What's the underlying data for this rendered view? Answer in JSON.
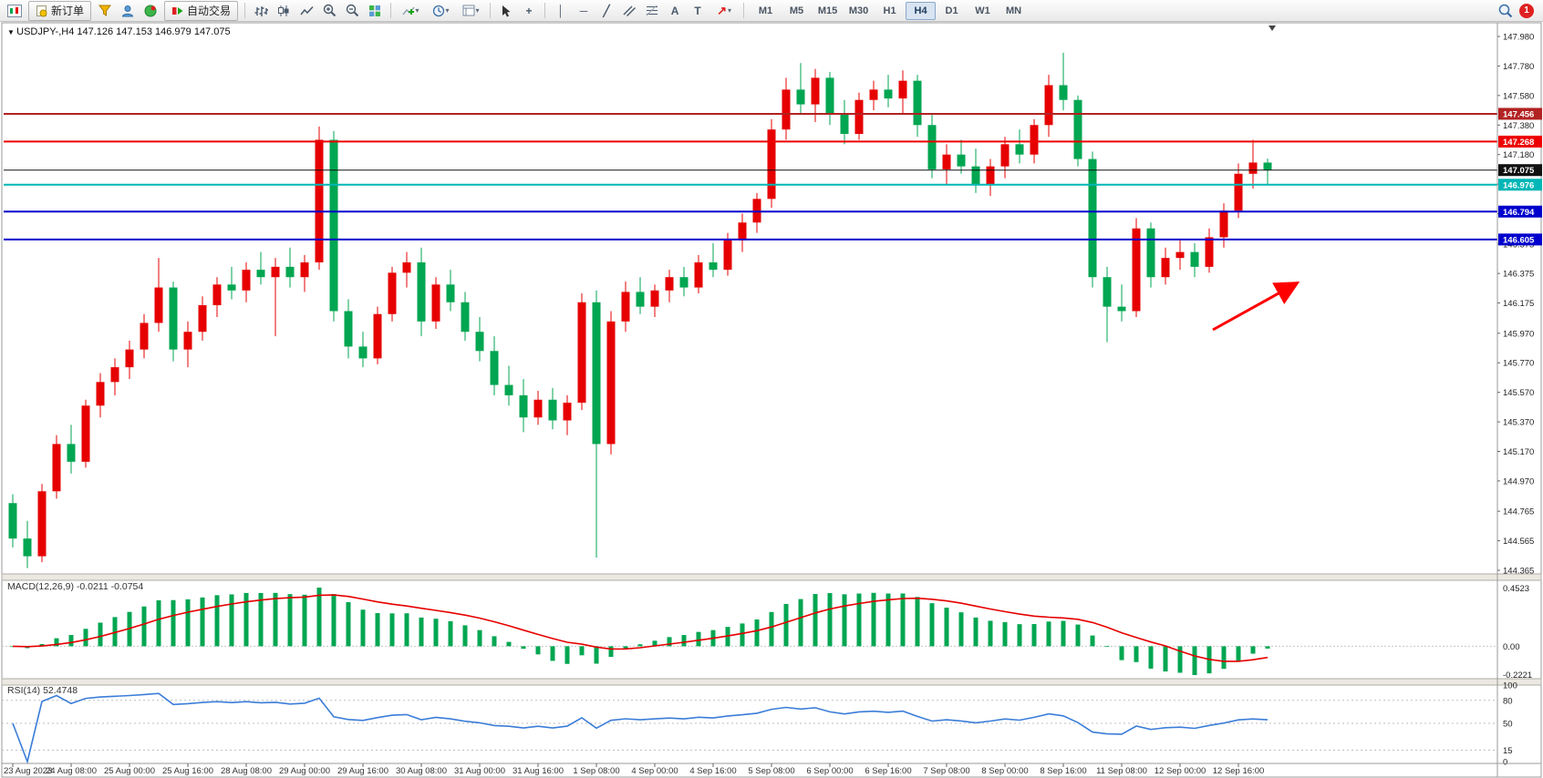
{
  "toolbar": {
    "new_order_label": "新订单",
    "autotrading_label": "自动交易",
    "timeframes": [
      "M1",
      "M5",
      "M15",
      "M30",
      "H1",
      "H4",
      "D1",
      "W1",
      "MN"
    ],
    "active_timeframe": "H4",
    "notification_count": "1"
  },
  "icons": {
    "one_click_toggle": "▼",
    "chart_shift_marker": "▼",
    "crosshair": "+",
    "vertical_line": "│",
    "horizontal_line": "─",
    "trendline": "╱",
    "text_tool": "A",
    "text_label_tool": "T",
    "arrows_tool": "↗",
    "dropdown_caret": "▾"
  },
  "chart": {
    "title": "USDJPY-,H4",
    "ohlc": {
      "open": "147.126",
      "high": "147.153",
      "low": "146.979",
      "close": "147.075"
    },
    "price_axis_ticks": [
      "147.980",
      "147.780",
      "147.580",
      "147.380",
      "147.180",
      "146.980",
      "146.780",
      "146.575",
      "146.375",
      "146.175",
      "145.970",
      "145.770",
      "145.570",
      "145.370",
      "145.170",
      "144.970",
      "144.765",
      "144.565",
      "144.365"
    ],
    "time_labels": [
      "23 Aug 2023",
      "24 Aug 08:00",
      "25 Aug 00:00",
      "25 Aug 16:00",
      "28 Aug 08:00",
      "29 Aug 00:00",
      "29 Aug 16:00",
      "30 Aug 08:00",
      "31 Aug 00:00",
      "31 Aug 16:00",
      "1 Sep 08:00",
      "4 Sep 00:00",
      "4 Sep 16:00",
      "5 Sep 08:00",
      "6 Sep 00:00",
      "6 Sep 16:00",
      "7 Sep 08:00",
      "8 Sep 00:00",
      "8 Sep 16:00",
      "11 Sep 08:00",
      "12 Sep 00:00",
      "12 Sep 16:00"
    ],
    "label_every_n_candles": 4,
    "levels": [
      {
        "price": "147.456",
        "value": 147.456,
        "color": "#b22222",
        "width": 2
      },
      {
        "price": "147.268",
        "value": 147.268,
        "color": "#ee0000",
        "width": 2
      },
      {
        "price": "147.075",
        "value": 147.075,
        "color": "#111111",
        "width": 1
      },
      {
        "price": "146.976",
        "value": 146.976,
        "color": "#00b6b6",
        "width": 2
      },
      {
        "price": "146.794",
        "value": 146.794,
        "color": "#0000cc",
        "width": 2
      },
      {
        "price": "146.605",
        "value": 146.605,
        "color": "#0000cc",
        "width": 2
      }
    ],
    "arrow_annotation": {
      "color": "#ff0000"
    }
  },
  "chart_data": {
    "type": "candlestick",
    "symbol": "USDJPY-",
    "timeframe": "H4",
    "up_color": "#e60000",
    "down_color": "#00a651",
    "ylim": [
      144.365,
      147.98
    ],
    "candles": [
      [
        144.82,
        144.88,
        144.52,
        144.58
      ],
      [
        144.58,
        144.7,
        144.38,
        144.46
      ],
      [
        144.46,
        144.95,
        144.42,
        144.9
      ],
      [
        144.9,
        145.28,
        144.85,
        145.22
      ],
      [
        145.22,
        145.35,
        145.02,
        145.1
      ],
      [
        145.1,
        145.52,
        145.06,
        145.48
      ],
      [
        145.48,
        145.7,
        145.4,
        145.64
      ],
      [
        145.64,
        145.8,
        145.55,
        145.74
      ],
      [
        145.74,
        145.92,
        145.66,
        145.86
      ],
      [
        145.86,
        146.1,
        145.8,
        146.04
      ],
      [
        146.04,
        146.48,
        145.98,
        146.28
      ],
      [
        146.28,
        146.32,
        145.78,
        145.86
      ],
      [
        145.86,
        146.05,
        145.74,
        145.98
      ],
      [
        145.98,
        146.22,
        145.92,
        146.16
      ],
      [
        146.16,
        146.35,
        146.08,
        146.3
      ],
      [
        146.3,
        146.42,
        146.2,
        146.26
      ],
      [
        146.26,
        146.45,
        146.18,
        146.4
      ],
      [
        146.4,
        146.52,
        146.3,
        146.35
      ],
      [
        146.35,
        146.48,
        145.95,
        146.42
      ],
      [
        146.42,
        146.55,
        146.28,
        146.35
      ],
      [
        146.35,
        146.5,
        146.25,
        146.45
      ],
      [
        146.45,
        147.37,
        146.4,
        147.28
      ],
      [
        147.28,
        147.34,
        146.05,
        146.12
      ],
      [
        146.12,
        146.2,
        145.8,
        145.88
      ],
      [
        145.88,
        145.98,
        145.74,
        145.8
      ],
      [
        145.8,
        146.15,
        145.76,
        146.1
      ],
      [
        146.1,
        146.42,
        146.05,
        146.38
      ],
      [
        146.38,
        146.52,
        146.28,
        146.45
      ],
      [
        146.45,
        146.55,
        145.95,
        146.05
      ],
      [
        146.05,
        146.35,
        146.0,
        146.3
      ],
      [
        146.3,
        146.4,
        146.12,
        146.18
      ],
      [
        146.18,
        146.25,
        145.92,
        145.98
      ],
      [
        145.98,
        146.08,
        145.78,
        145.85
      ],
      [
        145.85,
        145.95,
        145.55,
        145.62
      ],
      [
        145.62,
        145.75,
        145.48,
        145.55
      ],
      [
        145.55,
        145.66,
        145.3,
        145.4
      ],
      [
        145.4,
        145.58,
        145.35,
        145.52
      ],
      [
        145.52,
        145.6,
        145.32,
        145.38
      ],
      [
        145.38,
        145.55,
        145.28,
        145.5
      ],
      [
        145.5,
        146.24,
        145.45,
        146.18
      ],
      [
        146.18,
        146.26,
        144.45,
        145.22
      ],
      [
        145.22,
        146.12,
        145.15,
        146.05
      ],
      [
        146.05,
        146.32,
        145.98,
        146.25
      ],
      [
        146.25,
        146.35,
        146.1,
        146.15
      ],
      [
        146.15,
        146.3,
        146.08,
        146.26
      ],
      [
        146.26,
        146.4,
        146.18,
        146.35
      ],
      [
        146.35,
        146.42,
        146.22,
        146.28
      ],
      [
        146.28,
        146.5,
        146.24,
        146.45
      ],
      [
        146.45,
        146.58,
        146.35,
        146.4
      ],
      [
        146.4,
        146.65,
        146.36,
        146.6
      ],
      [
        146.6,
        146.78,
        146.52,
        146.72
      ],
      [
        146.72,
        146.92,
        146.65,
        146.88
      ],
      [
        146.88,
        147.42,
        146.82,
        147.35
      ],
      [
        147.35,
        147.7,
        147.28,
        147.62
      ],
      [
        147.62,
        147.8,
        147.45,
        147.52
      ],
      [
        147.52,
        147.76,
        147.4,
        147.7
      ],
      [
        147.7,
        147.74,
        147.38,
        147.45
      ],
      [
        147.45,
        147.55,
        147.25,
        147.32
      ],
      [
        147.32,
        147.6,
        147.28,
        147.55
      ],
      [
        147.55,
        147.68,
        147.48,
        147.62
      ],
      [
        147.62,
        147.72,
        147.5,
        147.56
      ],
      [
        147.56,
        147.75,
        147.45,
        147.68
      ],
      [
        147.68,
        147.72,
        147.3,
        147.38
      ],
      [
        147.38,
        147.45,
        147.02,
        147.08
      ],
      [
        147.08,
        147.25,
        146.98,
        147.18
      ],
      [
        147.18,
        147.28,
        147.05,
        147.1
      ],
      [
        147.1,
        147.22,
        146.92,
        146.98
      ],
      [
        146.98,
        147.15,
        146.9,
        147.1
      ],
      [
        147.1,
        147.3,
        147.02,
        147.25
      ],
      [
        147.25,
        147.35,
        147.12,
        147.18
      ],
      [
        147.18,
        147.42,
        147.12,
        147.38
      ],
      [
        147.38,
        147.72,
        147.3,
        147.65
      ],
      [
        147.65,
        147.87,
        147.48,
        147.55
      ],
      [
        147.55,
        147.58,
        147.1,
        147.15
      ],
      [
        147.15,
        147.2,
        146.28,
        146.35
      ],
      [
        146.35,
        146.42,
        145.91,
        146.15
      ],
      [
        146.15,
        146.3,
        146.05,
        146.12
      ],
      [
        146.12,
        146.75,
        146.08,
        146.68
      ],
      [
        146.68,
        146.72,
        146.28,
        146.35
      ],
      [
        146.35,
        146.55,
        146.3,
        146.48
      ],
      [
        146.48,
        146.6,
        146.4,
        146.52
      ],
      [
        146.52,
        146.58,
        146.35,
        146.42
      ],
      [
        146.42,
        146.68,
        146.38,
        146.62
      ],
      [
        146.62,
        146.85,
        146.55,
        146.8
      ],
      [
        146.8,
        147.12,
        146.75,
        147.05
      ],
      [
        147.05,
        147.28,
        146.95,
        147.126
      ],
      [
        147.126,
        147.153,
        146.979,
        147.075
      ]
    ],
    "indicators": {
      "macd": {
        "label": "MACD(12,26,9)",
        "value_main": "-0.0211",
        "value_signal": "-0.0754",
        "params": [
          12,
          26,
          9
        ],
        "scale_max": 0.4523,
        "scale_min": -0.2221,
        "scale_labels": [
          "0.4523",
          "0.00",
          "-0.2221"
        ],
        "histogram_color": "#00a651",
        "signal_color": "#e60000"
      },
      "rsi": {
        "label": "RSI(14)",
        "value": "52.4748",
        "period": 14,
        "scale_labels": [
          "100",
          "80",
          "50",
          "15",
          "0"
        ],
        "levels": [
          80,
          50,
          15
        ],
        "line_color": "#3b7dd8"
      }
    }
  }
}
